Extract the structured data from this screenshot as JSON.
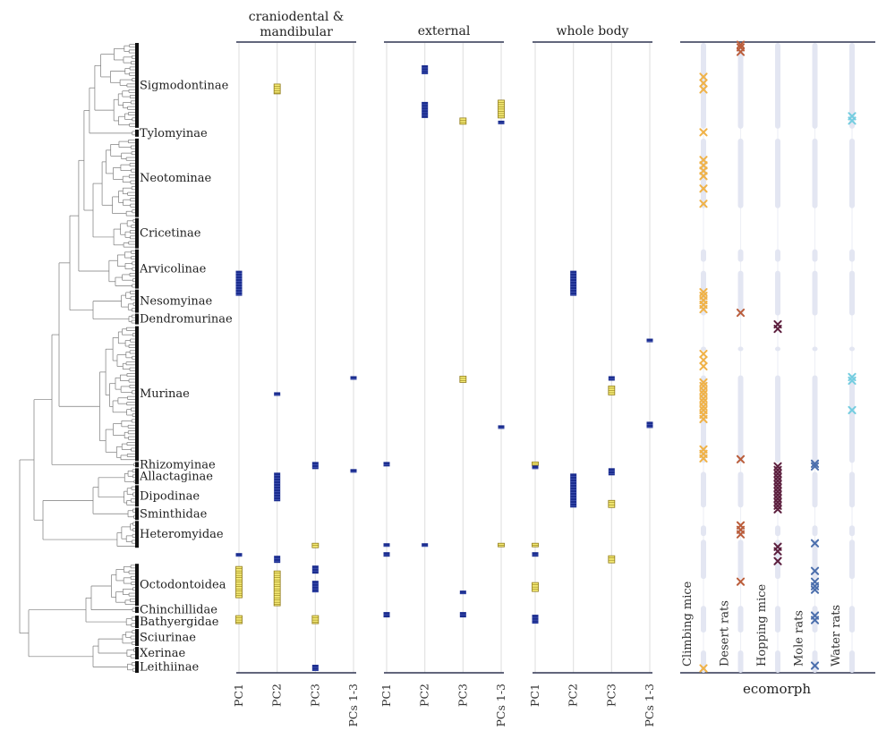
{
  "chart_data": {
    "type": "scatter",
    "title": "",
    "clades": [
      {
        "name": "Sigmodontinae",
        "y_range": [
          0,
          95
        ]
      },
      {
        "name": "Tylomyinae",
        "y_range": [
          97,
          105
        ]
      },
      {
        "name": "Neotominae",
        "y_range": [
          107,
          195
        ]
      },
      {
        "name": "Cricetinae",
        "y_range": [
          196,
          230
        ]
      },
      {
        "name": "Arvicolinae",
        "y_range": [
          231,
          275
        ]
      },
      {
        "name": "Nesomyinae",
        "y_range": [
          276,
          302
        ]
      },
      {
        "name": "Dendromurinae",
        "y_range": [
          303,
          315
        ]
      },
      {
        "name": "Murinae",
        "y_range": [
          317,
          468
        ]
      },
      {
        "name": "Rhizomyinae",
        "y_range": [
          469,
          475
        ]
      },
      {
        "name": "Allactaginae",
        "y_range": [
          476,
          494
        ]
      },
      {
        "name": "Dipodinae",
        "y_range": [
          495,
          519
        ]
      },
      {
        "name": "Sminthidae",
        "y_range": [
          520,
          534
        ]
      },
      {
        "name": "Heteromyidae",
        "y_range": [
          535,
          565
        ]
      },
      {
        "name": "Octodontoidea",
        "y_range": [
          583,
          630
        ]
      },
      {
        "name": "Chinchillidae",
        "y_range": [
          631,
          638
        ]
      },
      {
        "name": "Bathyergidae",
        "y_range": [
          641,
          655
        ]
      },
      {
        "name": "Sciurinae",
        "y_range": [
          656,
          675
        ]
      },
      {
        "name": "Xerinae",
        "y_range": [
          676,
          690
        ]
      },
      {
        "name": "Leithiinae",
        "y_range": [
          692,
          705
        ]
      }
    ],
    "y_domain": [
      0,
      705
    ],
    "panels": [
      {
        "title": "craniodental & mandibular",
        "pc_labels": [
          "PC1",
          "PC2",
          "PC3",
          "PCs 1-3"
        ]
      },
      {
        "title": "external",
        "pc_labels": [
          "PC1",
          "PC2",
          "PC3",
          "PCs 1-3"
        ]
      },
      {
        "title": "whole body",
        "pc_labels": [
          "PC1",
          "PC2",
          "PC3",
          "PCs 1-3"
        ]
      }
    ],
    "shift_legend": {
      "positive": "yellow striped box",
      "negative": "blue box"
    },
    "shifts": [
      {
        "panel": 0,
        "pc": 1,
        "y0": 46,
        "y1": 57,
        "sign": "pos"
      },
      {
        "panel": 0,
        "pc": 0,
        "y0": 255,
        "y1": 283,
        "sign": "neg"
      },
      {
        "panel": 0,
        "pc": 3,
        "y0": 373,
        "y1": 377,
        "sign": "neg"
      },
      {
        "panel": 0,
        "pc": 1,
        "y0": 391,
        "y1": 395,
        "sign": "neg"
      },
      {
        "panel": 0,
        "pc": 2,
        "y0": 469,
        "y1": 477,
        "sign": "neg"
      },
      {
        "panel": 0,
        "pc": 3,
        "y0": 477,
        "y1": 481,
        "sign": "neg"
      },
      {
        "panel": 0,
        "pc": 1,
        "y0": 481,
        "y1": 513,
        "sign": "neg"
      },
      {
        "panel": 0,
        "pc": 2,
        "y0": 560,
        "y1": 565,
        "sign": "pos"
      },
      {
        "panel": 0,
        "pc": 0,
        "y0": 571,
        "y1": 575,
        "sign": "neg"
      },
      {
        "panel": 0,
        "pc": 1,
        "y0": 574,
        "y1": 582,
        "sign": "neg"
      },
      {
        "panel": 0,
        "pc": 0,
        "y0": 586,
        "y1": 621,
        "sign": "pos"
      },
      {
        "panel": 0,
        "pc": 1,
        "y0": 591,
        "y1": 630,
        "sign": "pos"
      },
      {
        "panel": 0,
        "pc": 2,
        "y0": 585,
        "y1": 594,
        "sign": "neg"
      },
      {
        "panel": 0,
        "pc": 2,
        "y0": 602,
        "y1": 615,
        "sign": "neg"
      },
      {
        "panel": 0,
        "pc": 0,
        "y0": 641,
        "y1": 650,
        "sign": "pos"
      },
      {
        "panel": 0,
        "pc": 2,
        "y0": 641,
        "y1": 650,
        "sign": "pos"
      },
      {
        "panel": 0,
        "pc": 2,
        "y0": 696,
        "y1": 703,
        "sign": "neg"
      },
      {
        "panel": 1,
        "pc": 1,
        "y0": 25,
        "y1": 35,
        "sign": "neg"
      },
      {
        "panel": 1,
        "pc": 1,
        "y0": 66,
        "y1": 84,
        "sign": "neg"
      },
      {
        "panel": 1,
        "pc": 2,
        "y0": 84,
        "y1": 91,
        "sign": "pos"
      },
      {
        "panel": 1,
        "pc": 3,
        "y0": 64,
        "y1": 84,
        "sign": "pos"
      },
      {
        "panel": 1,
        "pc": 3,
        "y0": 87,
        "y1": 91,
        "sign": "neg"
      },
      {
        "panel": 1,
        "pc": 2,
        "y0": 373,
        "y1": 380,
        "sign": "pos"
      },
      {
        "panel": 1,
        "pc": 3,
        "y0": 428,
        "y1": 432,
        "sign": "neg"
      },
      {
        "panel": 1,
        "pc": 0,
        "y0": 469,
        "y1": 474,
        "sign": "neg"
      },
      {
        "panel": 1,
        "pc": 0,
        "y0": 560,
        "y1": 564,
        "sign": "neg"
      },
      {
        "panel": 1,
        "pc": 1,
        "y0": 560,
        "y1": 564,
        "sign": "neg"
      },
      {
        "panel": 1,
        "pc": 3,
        "y0": 560,
        "y1": 564,
        "sign": "pos"
      },
      {
        "panel": 1,
        "pc": 0,
        "y0": 570,
        "y1": 575,
        "sign": "neg"
      },
      {
        "panel": 1,
        "pc": 2,
        "y0": 613,
        "y1": 617,
        "sign": "neg"
      },
      {
        "panel": 1,
        "pc": 0,
        "y0": 637,
        "y1": 643,
        "sign": "neg"
      },
      {
        "panel": 1,
        "pc": 2,
        "y0": 637,
        "y1": 643,
        "sign": "neg"
      },
      {
        "panel": 2,
        "pc": 1,
        "y0": 255,
        "y1": 283,
        "sign": "neg"
      },
      {
        "panel": 2,
        "pc": 3,
        "y0": 331,
        "y1": 335,
        "sign": "neg"
      },
      {
        "panel": 2,
        "pc": 2,
        "y0": 373,
        "y1": 378,
        "sign": "neg"
      },
      {
        "panel": 2,
        "pc": 2,
        "y0": 384,
        "y1": 394,
        "sign": "pos"
      },
      {
        "panel": 2,
        "pc": 3,
        "y0": 424,
        "y1": 431,
        "sign": "neg"
      },
      {
        "panel": 2,
        "pc": 0,
        "y0": 469,
        "y1": 473,
        "sign": "pos"
      },
      {
        "panel": 2,
        "pc": 0,
        "y0": 473,
        "y1": 476,
        "sign": "neg"
      },
      {
        "panel": 2,
        "pc": 2,
        "y0": 476,
        "y1": 484,
        "sign": "neg"
      },
      {
        "panel": 2,
        "pc": 1,
        "y0": 482,
        "y1": 520,
        "sign": "neg"
      },
      {
        "panel": 2,
        "pc": 2,
        "y0": 512,
        "y1": 520,
        "sign": "pos"
      },
      {
        "panel": 2,
        "pc": 0,
        "y0": 560,
        "y1": 564,
        "sign": "pos"
      },
      {
        "panel": 2,
        "pc": 0,
        "y0": 570,
        "y1": 575,
        "sign": "neg"
      },
      {
        "panel": 2,
        "pc": 2,
        "y0": 574,
        "y1": 582,
        "sign": "pos"
      },
      {
        "panel": 2,
        "pc": 0,
        "y0": 604,
        "y1": 614,
        "sign": "pos"
      },
      {
        "panel": 2,
        "pc": 0,
        "y0": 640,
        "y1": 650,
        "sign": "neg"
      }
    ],
    "ecomorph": {
      "title": "ecomorph",
      "categories": [
        {
          "name": "Climbing mice",
          "color": "#f0b247",
          "ys": [
            38,
            45,
            52,
            100,
            131,
            137,
            143,
            149,
            163,
            180,
            279,
            283,
            288,
            293,
            298,
            348,
            355,
            362,
            380,
            384,
            389,
            393,
            398,
            402,
            407,
            411,
            416,
            421,
            455,
            460,
            465,
            700
          ]
        },
        {
          "name": "Desert rats",
          "color": "#bb5e3c",
          "ys": [
            2,
            5,
            10,
            302,
            466,
            540,
            545,
            550,
            603
          ]
        },
        {
          "name": "Hopping mice",
          "color": "#5c1e3d",
          "ys": [
            315,
            320,
            474,
            478,
            482,
            486,
            490,
            494,
            498,
            502,
            506,
            510,
            514,
            518,
            522,
            564,
            569,
            580
          ]
        },
        {
          "name": "Mole rats",
          "color": "#4c6fad",
          "ys": [
            471,
            474,
            560,
            591,
            603,
            608,
            612,
            641,
            646,
            697
          ]
        },
        {
          "name": "Water rats",
          "color": "#74cde0",
          "ys": [
            82,
            87,
            374,
            378,
            411
          ]
        }
      ],
      "band_segments": [
        [
          0,
          96
        ],
        [
          107,
          185
        ],
        [
          231,
          245
        ],
        [
          255,
          305
        ],
        [
          340,
          345
        ],
        [
          372,
          470
        ],
        [
          480,
          520
        ],
        [
          540,
          552
        ],
        [
          556,
          600
        ],
        [
          630,
          660
        ],
        [
          680,
          705
        ]
      ]
    }
  },
  "colors": {
    "positive_fill": "#f4ea74",
    "positive_stroke": "#8f7a18",
    "negative_fill": "#1b2d8f",
    "axis": "#2e3350",
    "gridline": "#e2e2e2",
    "tree": "#7a7a7a"
  }
}
